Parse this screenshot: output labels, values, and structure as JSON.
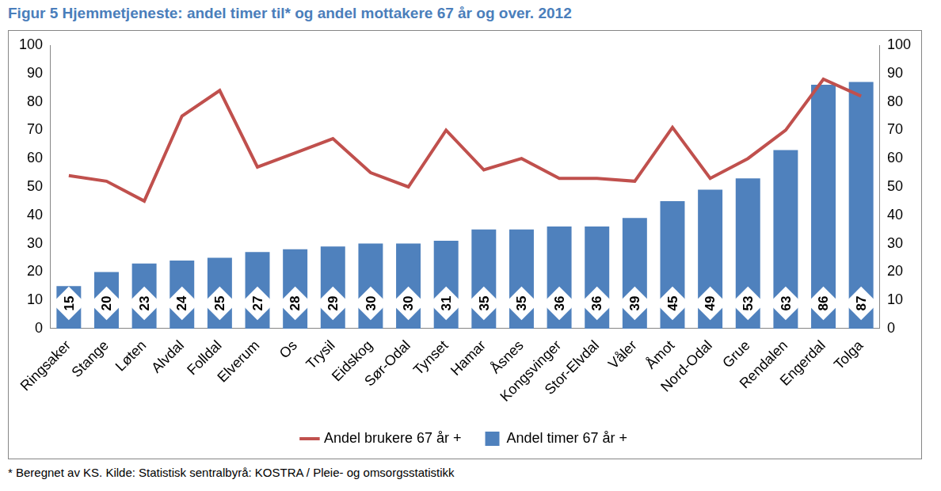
{
  "chart_data": {
    "type": "bar",
    "title": "Figur 5 Hjemmetjeneste: andel timer til* og andel mottakere 67 år og over. 2012",
    "annotations": [
      "* Beregnet av KS. Kilde: Statistisk sentralbyrå: KOSTRA / Pleie- og omsorgsstatistikk"
    ],
    "categories": [
      "Ringsaker",
      "Stange",
      "Løten",
      "Alvdal",
      "Folldal",
      "Elverum",
      "Os",
      "Trysil",
      "Eidskog",
      "Sør-Odal",
      "Tynset",
      "Hamar",
      "Åsnes",
      "Kongsvinger",
      "Stor-Elvdal",
      "Våler",
      "Åmot",
      "Nord-Odal",
      "Grue",
      "Rendalen",
      "Engerdal",
      "Tolga"
    ],
    "series": [
      {
        "name": "Andel timer 67 år +",
        "type": "bar",
        "color": "#4f81bd",
        "values": [
          15,
          20,
          23,
          24,
          25,
          27,
          28,
          29,
          30,
          30,
          31,
          35,
          35,
          36,
          36,
          39,
          45,
          49,
          53,
          63,
          86,
          87
        ]
      },
      {
        "name": "Andel brukere 67 år +",
        "type": "line",
        "color": "#c0504d",
        "axis": "y2",
        "marker": "none",
        "values": [
          54,
          52,
          45,
          75,
          84,
          57,
          62,
          67,
          55,
          50,
          70,
          56,
          60,
          53,
          53,
          52,
          71,
          53,
          60,
          70,
          88,
          82
        ]
      }
    ],
    "ylim": [
      0,
      100
    ],
    "yticks": [
      0,
      10,
      20,
      30,
      40,
      50,
      60,
      70,
      80,
      90,
      100
    ],
    "y2lim": [
      0,
      100
    ],
    "y2ticks": [
      0,
      10,
      20,
      30,
      40,
      50,
      60,
      70,
      80,
      90,
      100
    ],
    "grid": false,
    "legend": "bottom",
    "data_labels": true
  }
}
